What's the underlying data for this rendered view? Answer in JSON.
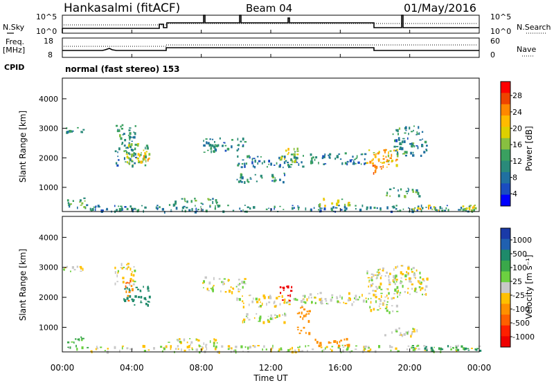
{
  "header": {
    "station": "Hankasalmi (fitACF)",
    "beam": "Beam 04",
    "date": "01/May/2016"
  },
  "noise_panel": {
    "left_label": "N.Sky",
    "left_ticks": [
      "10^5",
      "10^0"
    ],
    "right_label": "N.Search",
    "right_ticks": [
      "10^5",
      "10^0"
    ]
  },
  "freq_panel": {
    "left_label_line1": "Freq.",
    "left_label_line2": "[MHz]",
    "left_ticks": [
      "18",
      "8"
    ],
    "right_label": "Nave",
    "right_ticks": [
      "60",
      "0"
    ]
  },
  "cpid": {
    "label": "CPID",
    "text": "normal (fast stereo) 153"
  },
  "axes": {
    "ylabel": "Slant Range [km]",
    "xlabel": "Time UT",
    "y_ticks": [
      "4000",
      "3000",
      "2000",
      "1000"
    ],
    "x_ticks": [
      "00:00",
      "04:00",
      "08:00",
      "12:00",
      "16:00",
      "20:00",
      "00:00"
    ]
  },
  "power_colorbar": {
    "label": "Power [dB]",
    "ticks": [
      "28",
      "24",
      "20",
      "16",
      "12",
      "8",
      "4"
    ],
    "colors": [
      "#ff0000",
      "#ee4400",
      "#ff8800",
      "#ffbb00",
      "#ddd000",
      "#88c040",
      "#3aa060",
      "#2a8a7a",
      "#2070a0",
      "#1a4cc0",
      "#0000ff"
    ]
  },
  "velocity_colorbar": {
    "label": "Velocity [m s⁻¹]",
    "ticks": [
      "1000",
      "500",
      "100",
      "25",
      "-25",
      "-100",
      "-500",
      "-1000"
    ],
    "colors": [
      "#1a3aa8",
      "#2060b0",
      "#1e8a6a",
      "#3aa84a",
      "#6cd040",
      "#c8c8c8",
      "#ffc000",
      "#ff9000",
      "#ff6000",
      "#ff2000",
      "#ee0000"
    ]
  },
  "chart_data": {
    "type": "heatmap",
    "title": "Hankasalmi (fitACF)  Beam 04  01/May/2016",
    "xlabel": "Time UT",
    "ylabel": "Slant Range [km]",
    "xlim": [
      0,
      24
    ],
    "ylim": [
      180,
      4700
    ],
    "x_ticks": [
      "00:00",
      "04:00",
      "08:00",
      "12:00",
      "16:00",
      "20:00",
      "00:00"
    ],
    "y_ticks": [
      1000,
      2000,
      3000,
      4000
    ],
    "noise_spikes_hours": [
      5.5,
      5.9,
      8.0,
      10.2,
      13.0,
      19.2
    ],
    "freq_shift_hours": [
      6.0,
      18.0
    ],
    "power_regions": [
      {
        "t": [
          0.0,
          1.2
        ],
        "r": [
          2880,
          3060
        ],
        "db": 10
      },
      {
        "t": [
          3.0,
          4.2
        ],
        "r": [
          1750,
          3150
        ],
        "db": 9
      },
      {
        "t": [
          3.5,
          5.0
        ],
        "r": [
          1750,
          2500
        ],
        "db": 14
      },
      {
        "t": [
          4.0,
          5.0
        ],
        "r": [
          1900,
          2200
        ],
        "db": 20
      },
      {
        "t": [
          0.2,
          1.4
        ],
        "r": [
          320,
          700
        ],
        "db": 10
      },
      {
        "t": [
          1.5,
          24.0
        ],
        "r": [
          200,
          420
        ],
        "db": 8
      },
      {
        "t": [
          6.0,
          9.0
        ],
        "r": [
          400,
          650
        ],
        "db": 10
      },
      {
        "t": [
          8.0,
          10.5
        ],
        "r": [
          2200,
          2700
        ],
        "db": 8
      },
      {
        "t": [
          10.0,
          14.0
        ],
        "r": [
          1700,
          2100
        ],
        "db": 8
      },
      {
        "t": [
          10.0,
          12.8
        ],
        "r": [
          1200,
          1500
        ],
        "db": 9
      },
      {
        "t": [
          12.5,
          13.5
        ],
        "r": [
          1900,
          2400
        ],
        "db": 15
      },
      {
        "t": [
          14.0,
          17.5
        ],
        "r": [
          1800,
          2200
        ],
        "db": 8
      },
      {
        "t": [
          14.5,
          16.5
        ],
        "r": [
          400,
          650
        ],
        "db": 18
      },
      {
        "t": [
          17.5,
          19.3
        ],
        "r": [
          1600,
          2300
        ],
        "db": 20
      },
      {
        "t": [
          17.8,
          18.8
        ],
        "r": [
          1500,
          1800
        ],
        "db": 24
      },
      {
        "t": [
          19.0,
          21.0
        ],
        "r": [
          2100,
          3100
        ],
        "db": 9
      },
      {
        "t": [
          18.5,
          20.5
        ],
        "r": [
          700,
          1000
        ],
        "db": 10
      },
      {
        "t": [
          20.0,
          22.0
        ],
        "r": [
          250,
          420
        ],
        "db": 18
      },
      {
        "t": [
          23.0,
          24.0
        ],
        "r": [
          250,
          450
        ],
        "db": 16
      }
    ],
    "velocity_regions": [
      {
        "t": [
          0.0,
          1.2
        ],
        "r": [
          2880,
          3060
        ],
        "v": 0
      },
      {
        "t": [
          3.0,
          4.2
        ],
        "r": [
          2400,
          3150
        ],
        "v": 0
      },
      {
        "t": [
          3.5,
          5.0
        ],
        "r": [
          1750,
          2400
        ],
        "v": 300
      },
      {
        "t": [
          3.6,
          4.0
        ],
        "r": [
          1800,
          2600
        ],
        "v": -300
      },
      {
        "t": [
          0.2,
          1.4
        ],
        "r": [
          320,
          700
        ],
        "v": 50
      },
      {
        "t": [
          1.5,
          24.0
        ],
        "r": [
          200,
          420
        ],
        "v": 0
      },
      {
        "t": [
          6.0,
          9.0
        ],
        "r": [
          400,
          650
        ],
        "v": 0
      },
      {
        "t": [
          8.0,
          10.5
        ],
        "r": [
          2200,
          2700
        ],
        "v": 0
      },
      {
        "t": [
          10.0,
          14.0
        ],
        "r": [
          1700,
          2100
        ],
        "v": 0
      },
      {
        "t": [
          10.0,
          12.8
        ],
        "r": [
          1200,
          1500
        ],
        "v": 0
      },
      {
        "t": [
          12.5,
          13.2
        ],
        "r": [
          1900,
          2400
        ],
        "v": -800
      },
      {
        "t": [
          13.5,
          14.2
        ],
        "r": [
          800,
          1700
        ],
        "v": -200
      },
      {
        "t": [
          14.5,
          16.5
        ],
        "r": [
          400,
          650
        ],
        "v": -200
      },
      {
        "t": [
          14.0,
          17.5
        ],
        "r": [
          1800,
          2200
        ],
        "v": 0
      },
      {
        "t": [
          17.5,
          19.3
        ],
        "r": [
          1500,
          3000
        ],
        "v": 0
      },
      {
        "t": [
          19.0,
          21.0
        ],
        "r": [
          2100,
          3100
        ],
        "v": 0
      },
      {
        "t": [
          18.5,
          20.5
        ],
        "r": [
          700,
          1000
        ],
        "v": 0
      },
      {
        "t": [
          20.0,
          24.0
        ],
        "r": [
          250,
          420
        ],
        "v": 150
      }
    ]
  }
}
